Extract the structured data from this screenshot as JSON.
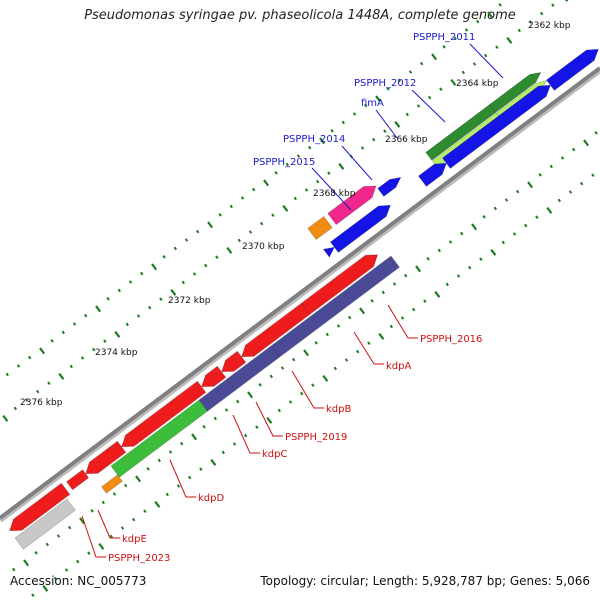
{
  "title": "Pseudomonas syringae pv. phaseolicola 1448A, complete genome",
  "footer": {
    "accession": "Accession: NC_005773",
    "summary": "Topology: circular; Length: 5,928,787 bp; Genes: 5,066"
  },
  "tick_labels": [
    "2362 kbp",
    "2364 kbp",
    "2366 kbp",
    "2368 kbp",
    "2370 kbp",
    "2372 kbp",
    "2374 kbp",
    "2376 kbp"
  ],
  "genes_upper": [
    "PSPPH_2011",
    "PSPPH_2012",
    "fimA",
    "PSPPH_2014",
    "PSPPH_2015"
  ],
  "genes_lower": [
    "PSPPH_2016",
    "kdpA",
    "kdpB",
    "PSPPH_2019",
    "kdpC",
    "kdpD",
    "kdpE",
    "PSPPH_2023"
  ],
  "colors": {
    "upper_label": "#1a1acc",
    "lower_label": "#cc1111",
    "backbone": "#8a8a8a",
    "red_gene": "#ee1c1c",
    "blue_gene": "#1414e6",
    "navy_gene": "#4a4a96",
    "green_gene": "#3cbe3c",
    "dark_green_gene": "#2e8b2e",
    "lime_gene": "#b6f064",
    "pink_gene": "#f0288c",
    "orange_gene": "#f08c14",
    "gray_gene": "#c8c8c8",
    "tick": "#1f7a1f"
  }
}
